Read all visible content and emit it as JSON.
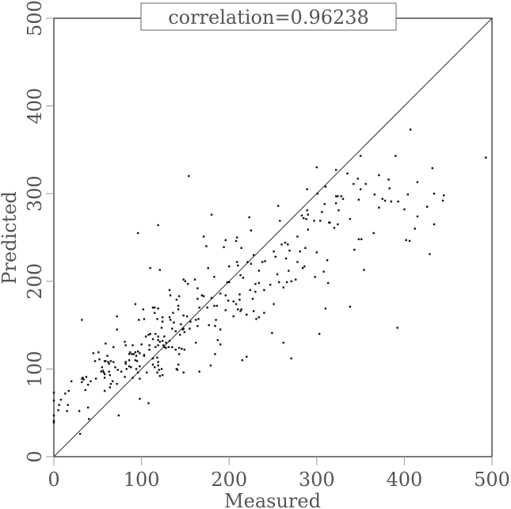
{
  "chart_data": {
    "type": "scatter",
    "title": "correlation=0.96238",
    "xlabel": "Measured",
    "ylabel": "Predicted",
    "xlim": [
      0,
      500
    ],
    "ylim": [
      0,
      500
    ],
    "xticks": [
      "0",
      "100",
      "200",
      "300",
      "400",
      "500"
    ],
    "yticks": [
      "0",
      "100",
      "200",
      "300",
      "400",
      "500"
    ],
    "reference_line": {
      "from": [
        0,
        0
      ],
      "to": [
        500,
        500
      ]
    },
    "grid": false,
    "points": [
      [
        407,
        373
      ],
      [
        493,
        341
      ],
      [
        350,
        343
      ],
      [
        390,
        343
      ],
      [
        300,
        330
      ],
      [
        322,
        327
      ],
      [
        432,
        329
      ],
      [
        335,
        323
      ],
      [
        371,
        321
      ],
      [
        347,
        317
      ],
      [
        382,
        316
      ],
      [
        342,
        311
      ],
      [
        356,
        311
      ],
      [
        415,
        313
      ],
      [
        289,
        305
      ],
      [
        310,
        308
      ],
      [
        350,
        305
      ],
      [
        383,
        306
      ],
      [
        301,
        300
      ],
      [
        366,
        299
      ],
      [
        404,
        299
      ],
      [
        434,
        300
      ],
      [
        445,
        298
      ],
      [
        322,
        297
      ],
      [
        324,
        297
      ],
      [
        328,
        297
      ],
      [
        330,
        294
      ],
      [
        348,
        293
      ],
      [
        375,
        294
      ],
      [
        378,
        292
      ],
      [
        385,
        291
      ],
      [
        393,
        291
      ],
      [
        444,
        292
      ],
      [
        309,
        288
      ],
      [
        322,
        289
      ],
      [
        371,
        284
      ],
      [
        400,
        282
      ],
      [
        426,
        285
      ],
      [
        289,
        281
      ],
      [
        306,
        279
      ],
      [
        325,
        281
      ],
      [
        290,
        276
      ],
      [
        283,
        275
      ],
      [
        285,
        272
      ],
      [
        288,
        271
      ],
      [
        297,
        269
      ],
      [
        304,
        269
      ],
      [
        314,
        267
      ],
      [
        315,
        267
      ],
      [
        338,
        271
      ],
      [
        415,
        274
      ],
      [
        324,
        265
      ],
      [
        320,
        261
      ],
      [
        290,
        259
      ],
      [
        434,
        265
      ],
      [
        412,
        260
      ],
      [
        365,
        255
      ],
      [
        348,
        248
      ],
      [
        351,
        248
      ],
      [
        402,
        247
      ],
      [
        406,
        246
      ],
      [
        287,
        238
      ],
      [
        343,
        236
      ],
      [
        300,
        233
      ],
      [
        429,
        231
      ],
      [
        312,
        224
      ],
      [
        284,
        215
      ],
      [
        286,
        217
      ],
      [
        308,
        211
      ],
      [
        354,
        213
      ],
      [
        298,
        205
      ],
      [
        313,
        198
      ],
      [
        310,
        169
      ],
      [
        338,
        171
      ],
      [
        392,
        147
      ],
      [
        303,
        140
      ],
      [
        154,
        320
      ],
      [
        96,
        255
      ],
      [
        119,
        264
      ],
      [
        110,
        215
      ],
      [
        121,
        213
      ],
      [
        180,
        276
      ],
      [
        171,
        251
      ],
      [
        174,
        240
      ],
      [
        196,
        247
      ],
      [
        194,
        239
      ],
      [
        209,
        250
      ],
      [
        208,
        246
      ],
      [
        214,
        238
      ],
      [
        223,
        273
      ],
      [
        225,
        258
      ],
      [
        256,
        286
      ],
      [
        258,
        269
      ],
      [
        228,
        230
      ],
      [
        221,
        222
      ],
      [
        225,
        220
      ],
      [
        209,
        222
      ],
      [
        210,
        218
      ],
      [
        200,
        217
      ],
      [
        176,
        215
      ],
      [
        183,
        205
      ],
      [
        213,
        207
      ],
      [
        216,
        204
      ],
      [
        198,
        199
      ],
      [
        200,
        199
      ],
      [
        238,
        222
      ],
      [
        241,
        223
      ],
      [
        251,
        234
      ],
      [
        253,
        228
      ],
      [
        260,
        242
      ],
      [
        264,
        244
      ],
      [
        267,
        242
      ],
      [
        269,
        235
      ],
      [
        265,
        226
      ],
      [
        278,
        251
      ],
      [
        281,
        234
      ],
      [
        278,
        222
      ],
      [
        234,
        212
      ],
      [
        255,
        208
      ],
      [
        268,
        212
      ],
      [
        257,
        199
      ],
      [
        266,
        199
      ],
      [
        262,
        193
      ],
      [
        271,
        200
      ],
      [
        276,
        202
      ],
      [
        247,
        196
      ],
      [
        240,
        190
      ],
      [
        234,
        198
      ],
      [
        230,
        197
      ],
      [
        230,
        188
      ],
      [
        224,
        190
      ],
      [
        227,
        180
      ],
      [
        212,
        185
      ],
      [
        208,
        174
      ],
      [
        205,
        177
      ],
      [
        199,
        178
      ],
      [
        212,
        179
      ],
      [
        196,
        184
      ],
      [
        190,
        186
      ],
      [
        196,
        167
      ],
      [
        210,
        168
      ],
      [
        214,
        168
      ],
      [
        213,
        166
      ],
      [
        205,
        160
      ],
      [
        220,
        162
      ],
      [
        228,
        166
      ],
      [
        234,
        159
      ],
      [
        231,
        157
      ],
      [
        240,
        164
      ],
      [
        251,
        174
      ],
      [
        249,
        141
      ],
      [
        262,
        130
      ],
      [
        271,
        112
      ],
      [
        215,
        110
      ],
      [
        220,
        114
      ],
      [
        180,
        181
      ],
      [
        183,
        172
      ],
      [
        186,
        172
      ],
      [
        185,
        156
      ],
      [
        184,
        149
      ],
      [
        177,
        150
      ],
      [
        190,
        145
      ],
      [
        187,
        133
      ],
      [
        190,
        128
      ],
      [
        184,
        117
      ],
      [
        179,
        104
      ],
      [
        166,
        97
      ],
      [
        162,
        130
      ],
      [
        164,
        149
      ],
      [
        162,
        156
      ],
      [
        165,
        157
      ],
      [
        166,
        170
      ],
      [
        164,
        180
      ],
      [
        164,
        192
      ],
      [
        169,
        184
      ],
      [
        171,
        183
      ],
      [
        161,
        202
      ],
      [
        148,
        202
      ],
      [
        150,
        200
      ],
      [
        153,
        197
      ],
      [
        175,
        170
      ],
      [
        132,
        190
      ],
      [
        133,
        184
      ],
      [
        143,
        183
      ],
      [
        140,
        179
      ],
      [
        142,
        172
      ],
      [
        142,
        168
      ],
      [
        136,
        164
      ],
      [
        148,
        161
      ],
      [
        152,
        160
      ],
      [
        156,
        154
      ],
      [
        132,
        159
      ],
      [
        133,
        156
      ],
      [
        124,
        159
      ],
      [
        124,
        154
      ],
      [
        118,
        157
      ],
      [
        115,
        164
      ],
      [
        113,
        170
      ],
      [
        115,
        170
      ],
      [
        119,
        169
      ],
      [
        102,
        168
      ],
      [
        93,
        174
      ],
      [
        97,
        156
      ],
      [
        103,
        157
      ],
      [
        145,
        151
      ],
      [
        137,
        153
      ],
      [
        123,
        147
      ],
      [
        135,
        146
      ],
      [
        148,
        146
      ],
      [
        147,
        145
      ],
      [
        149,
        142
      ],
      [
        144,
        139
      ],
      [
        139,
        143
      ],
      [
        155,
        146
      ],
      [
        126,
        137
      ],
      [
        119,
        137
      ],
      [
        116,
        140
      ],
      [
        110,
        140
      ],
      [
        108,
        139
      ],
      [
        105,
        137
      ],
      [
        113,
        134
      ],
      [
        119,
        133
      ],
      [
        124,
        132
      ],
      [
        132,
        132
      ],
      [
        119,
        127
      ],
      [
        128,
        130
      ],
      [
        121,
        131
      ],
      [
        125,
        127
      ],
      [
        126,
        125
      ],
      [
        128,
        124
      ],
      [
        131,
        125
      ],
      [
        135,
        125
      ],
      [
        139,
        122
      ],
      [
        143,
        124
      ],
      [
        146,
        123
      ],
      [
        149,
        122
      ],
      [
        143,
        117
      ],
      [
        116,
        125
      ],
      [
        109,
        127
      ],
      [
        109,
        122
      ],
      [
        100,
        128
      ],
      [
        96,
        120
      ],
      [
        98,
        118
      ],
      [
        103,
        116
      ],
      [
        103,
        115
      ],
      [
        90,
        127
      ],
      [
        82,
        127
      ],
      [
        81,
        131
      ],
      [
        87,
        119
      ],
      [
        86,
        117
      ],
      [
        89,
        117
      ],
      [
        91,
        117
      ],
      [
        93,
        119
      ],
      [
        94,
        115
      ],
      [
        93,
        110
      ],
      [
        95,
        109
      ],
      [
        98,
        103
      ],
      [
        86,
        110
      ],
      [
        82,
        108
      ],
      [
        82,
        106
      ],
      [
        86,
        103
      ],
      [
        88,
        102
      ],
      [
        83,
        100
      ],
      [
        77,
        97
      ],
      [
        94,
        100
      ],
      [
        96,
        96
      ],
      [
        113,
        112
      ],
      [
        118,
        113
      ],
      [
        119,
        108
      ],
      [
        113,
        105
      ],
      [
        115,
        102
      ],
      [
        119,
        104
      ],
      [
        120,
        99
      ],
      [
        123,
        100
      ],
      [
        118,
        96
      ],
      [
        121,
        92
      ],
      [
        124,
        93
      ],
      [
        106,
        96
      ],
      [
        140,
        100
      ],
      [
        141,
        99
      ],
      [
        142,
        105
      ],
      [
        148,
        96
      ],
      [
        98,
        89
      ],
      [
        90,
        90
      ],
      [
        81,
        91
      ],
      [
        32,
        156
      ],
      [
        72,
        160
      ],
      [
        72,
        145
      ],
      [
        0,
        73
      ],
      [
        0,
        64
      ],
      [
        0,
        47
      ],
      [
        0,
        39
      ],
      [
        0,
        41
      ],
      [
        8,
        65
      ],
      [
        13,
        72
      ],
      [
        17,
        75
      ],
      [
        20,
        86
      ],
      [
        6,
        59
      ],
      [
        5,
        53
      ],
      [
        16,
        59
      ],
      [
        15,
        52
      ],
      [
        29,
        52
      ],
      [
        39,
        56
      ],
      [
        40,
        43
      ],
      [
        30,
        26
      ],
      [
        74,
        47
      ],
      [
        32,
        89
      ],
      [
        33,
        90
      ],
      [
        34,
        88
      ],
      [
        37,
        91
      ],
      [
        32,
        85
      ],
      [
        39,
        82
      ],
      [
        36,
        76
      ],
      [
        42,
        86
      ],
      [
        48,
        89
      ],
      [
        45,
        118
      ],
      [
        47,
        109
      ],
      [
        51,
        119
      ],
      [
        52,
        111
      ],
      [
        59,
        129
      ],
      [
        68,
        125
      ],
      [
        58,
        109
      ],
      [
        59,
        109
      ],
      [
        61,
        115
      ],
      [
        62,
        108
      ],
      [
        63,
        106
      ],
      [
        65,
        109
      ],
      [
        68,
        108
      ],
      [
        55,
        102
      ],
      [
        54,
        97
      ],
      [
        56,
        98
      ],
      [
        57,
        96
      ],
      [
        58,
        94
      ],
      [
        63,
        97
      ],
      [
        64,
        93
      ],
      [
        58,
        90
      ],
      [
        67,
        86
      ],
      [
        65,
        83
      ],
      [
        64,
        79
      ],
      [
        58,
        75
      ],
      [
        70,
        102
      ],
      [
        73,
        99
      ],
      [
        72,
        83
      ],
      [
        98,
        66
      ],
      [
        108,
        61
      ]
    ]
  },
  "colors": {
    "axis": "#222222",
    "point": "#111111",
    "text": "#555555"
  }
}
